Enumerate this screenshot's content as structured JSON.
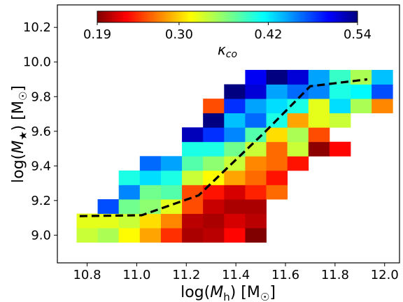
{
  "chart_data": {
    "type": "heatmap",
    "xlabel": "log(M_h) [M_☉]",
    "ylabel": "log(M_★) [M_☉]",
    "xlim": [
      10.68,
      12.06
    ],
    "ylim": [
      8.84,
      10.33
    ],
    "xticks": [
      10.8,
      11.0,
      11.2,
      11.4,
      11.6,
      11.8,
      12.0
    ],
    "xtick_labels": [
      "10.8",
      "11.0",
      "11.2",
      "11.4",
      "11.6",
      "11.8",
      "12.0"
    ],
    "yticks": [
      9.0,
      9.2,
      9.4,
      9.6,
      9.8,
      10.0,
      10.2
    ],
    "ytick_labels": [
      "9.0",
      "9.2",
      "9.4",
      "9.6",
      "9.8",
      "10.0",
      "10.2"
    ],
    "bin_width_x": 0.085,
    "bin_width_y": 0.083,
    "colorbar": {
      "label": "κ_co",
      "colormap": "jet_r",
      "vmin": 0.19,
      "vmax": 0.54,
      "ticks": [
        0.19,
        0.3,
        0.42,
        0.54
      ],
      "tick_labels": [
        "0.19",
        "0.30",
        "0.42",
        "0.54"
      ],
      "orientation": "horizontal",
      "location": "inset-top"
    },
    "cells": [
      {
        "x": 10.8,
        "y": 9.0,
        "v": 0.34
      },
      {
        "x": 10.885,
        "y": 9.0,
        "v": 0.35
      },
      {
        "x": 10.97,
        "y": 9.0,
        "v": 0.32
      },
      {
        "x": 11.055,
        "y": 9.0,
        "v": 0.29
      },
      {
        "x": 11.14,
        "y": 9.0,
        "v": 0.25
      },
      {
        "x": 11.225,
        "y": 9.0,
        "v": 0.205
      },
      {
        "x": 11.31,
        "y": 9.0,
        "v": 0.21
      },
      {
        "x": 11.395,
        "y": 9.0,
        "v": 0.235
      },
      {
        "x": 11.48,
        "y": 9.0,
        "v": 0.19
      },
      {
        "x": 10.8,
        "y": 9.083,
        "v": 0.33
      },
      {
        "x": 10.885,
        "y": 9.083,
        "v": 0.33
      },
      {
        "x": 10.97,
        "y": 9.083,
        "v": 0.34
      },
      {
        "x": 11.055,
        "y": 9.083,
        "v": 0.31
      },
      {
        "x": 11.14,
        "y": 9.083,
        "v": 0.28
      },
      {
        "x": 11.225,
        "y": 9.083,
        "v": 0.21
      },
      {
        "x": 11.31,
        "y": 9.083,
        "v": 0.205
      },
      {
        "x": 11.395,
        "y": 9.083,
        "v": 0.22
      },
      {
        "x": 11.48,
        "y": 9.083,
        "v": 0.21
      },
      {
        "x": 10.885,
        "y": 9.166,
        "v": 0.47
      },
      {
        "x": 10.97,
        "y": 9.166,
        "v": 0.37
      },
      {
        "x": 11.055,
        "y": 9.166,
        "v": 0.36
      },
      {
        "x": 11.14,
        "y": 9.166,
        "v": 0.33
      },
      {
        "x": 11.225,
        "y": 9.166,
        "v": 0.26
      },
      {
        "x": 11.31,
        "y": 9.166,
        "v": 0.215
      },
      {
        "x": 11.395,
        "y": 9.166,
        "v": 0.205
      },
      {
        "x": 11.48,
        "y": 9.166,
        "v": 0.205
      },
      {
        "x": 10.97,
        "y": 9.249,
        "v": 0.45
      },
      {
        "x": 11.055,
        "y": 9.249,
        "v": 0.37
      },
      {
        "x": 11.14,
        "y": 9.249,
        "v": 0.38
      },
      {
        "x": 11.225,
        "y": 9.249,
        "v": 0.26
      },
      {
        "x": 11.31,
        "y": 9.249,
        "v": 0.24
      },
      {
        "x": 11.395,
        "y": 9.249,
        "v": 0.22
      },
      {
        "x": 11.48,
        "y": 9.249,
        "v": 0.245
      },
      {
        "x": 11.565,
        "y": 9.249,
        "v": 0.27
      },
      {
        "x": 10.97,
        "y": 9.332,
        "v": 0.4
      },
      {
        "x": 11.055,
        "y": 9.332,
        "v": 0.42
      },
      {
        "x": 11.14,
        "y": 9.332,
        "v": 0.4
      },
      {
        "x": 11.225,
        "y": 9.332,
        "v": 0.34
      },
      {
        "x": 11.31,
        "y": 9.332,
        "v": 0.32
      },
      {
        "x": 11.395,
        "y": 9.332,
        "v": 0.29
      },
      {
        "x": 11.48,
        "y": 9.332,
        "v": 0.27
      },
      {
        "x": 11.565,
        "y": 9.332,
        "v": 0.24
      },
      {
        "x": 11.055,
        "y": 9.415,
        "v": 0.46
      },
      {
        "x": 11.14,
        "y": 9.415,
        "v": 0.44
      },
      {
        "x": 11.225,
        "y": 9.415,
        "v": 0.38
      },
      {
        "x": 11.31,
        "y": 9.415,
        "v": 0.36
      },
      {
        "x": 11.395,
        "y": 9.415,
        "v": 0.34
      },
      {
        "x": 11.48,
        "y": 9.415,
        "v": 0.28
      },
      {
        "x": 11.565,
        "y": 9.415,
        "v": 0.27
      },
      {
        "x": 11.65,
        "y": 9.415,
        "v": 0.24
      },
      {
        "x": 11.225,
        "y": 9.498,
        "v": 0.4
      },
      {
        "x": 11.31,
        "y": 9.498,
        "v": 0.4
      },
      {
        "x": 11.395,
        "y": 9.498,
        "v": 0.37
      },
      {
        "x": 11.48,
        "y": 9.498,
        "v": 0.34
      },
      {
        "x": 11.565,
        "y": 9.498,
        "v": 0.27
      },
      {
        "x": 11.65,
        "y": 9.498,
        "v": 0.34
      },
      {
        "x": 11.735,
        "y": 9.498,
        "v": 0.195
      },
      {
        "x": 11.82,
        "y": 9.498,
        "v": 0.235
      },
      {
        "x": 11.225,
        "y": 9.581,
        "v": 0.52
      },
      {
        "x": 11.31,
        "y": 9.581,
        "v": 0.48
      },
      {
        "x": 11.395,
        "y": 9.581,
        "v": 0.45
      },
      {
        "x": 11.48,
        "y": 9.581,
        "v": 0.38
      },
      {
        "x": 11.565,
        "y": 9.581,
        "v": 0.31
      },
      {
        "x": 11.65,
        "y": 9.581,
        "v": 0.35
      },
      {
        "x": 11.735,
        "y": 9.581,
        "v": 0.26
      },
      {
        "x": 11.31,
        "y": 9.664,
        "v": 0.54
      },
      {
        "x": 11.395,
        "y": 9.664,
        "v": 0.43
      },
      {
        "x": 11.48,
        "y": 9.664,
        "v": 0.46
      },
      {
        "x": 11.565,
        "y": 9.664,
        "v": 0.4
      },
      {
        "x": 11.65,
        "y": 9.664,
        "v": 0.29
      },
      {
        "x": 11.735,
        "y": 9.664,
        "v": 0.33
      },
      {
        "x": 11.82,
        "y": 9.664,
        "v": 0.34
      },
      {
        "x": 11.31,
        "y": 9.747,
        "v": 0.26
      },
      {
        "x": 11.395,
        "y": 9.747,
        "v": 0.48
      },
      {
        "x": 11.48,
        "y": 9.747,
        "v": 0.44
      },
      {
        "x": 11.565,
        "y": 9.747,
        "v": 0.42
      },
      {
        "x": 11.65,
        "y": 9.747,
        "v": 0.4
      },
      {
        "x": 11.735,
        "y": 9.747,
        "v": 0.33
      },
      {
        "x": 11.82,
        "y": 9.747,
        "v": 0.42
      },
      {
        "x": 11.905,
        "y": 9.747,
        "v": 0.35
      },
      {
        "x": 11.99,
        "y": 9.747,
        "v": 0.28
      },
      {
        "x": 11.395,
        "y": 9.83,
        "v": 0.54
      },
      {
        "x": 11.48,
        "y": 9.83,
        "v": 0.51
      },
      {
        "x": 11.565,
        "y": 9.83,
        "v": 0.44
      },
      {
        "x": 11.65,
        "y": 9.83,
        "v": 0.46
      },
      {
        "x": 11.735,
        "y": 9.83,
        "v": 0.45
      },
      {
        "x": 11.82,
        "y": 9.83,
        "v": 0.4
      },
      {
        "x": 11.905,
        "y": 9.83,
        "v": 0.41
      },
      {
        "x": 11.99,
        "y": 9.83,
        "v": 0.47
      },
      {
        "x": 11.48,
        "y": 9.913,
        "v": 0.5
      },
      {
        "x": 11.565,
        "y": 9.913,
        "v": 0.54
      },
      {
        "x": 11.65,
        "y": 9.913,
        "v": 0.51
      },
      {
        "x": 11.735,
        "y": 9.913,
        "v": 0.44
      },
      {
        "x": 11.82,
        "y": 9.913,
        "v": 0.39
      },
      {
        "x": 11.905,
        "y": 9.913,
        "v": 0.35
      },
      {
        "x": 11.99,
        "y": 9.913,
        "v": 0.43
      }
    ],
    "median_line": {
      "style": "dashed",
      "color": "#000000",
      "x": [
        10.77,
        11.02,
        11.25,
        11.52,
        11.7,
        11.93
      ],
      "y": [
        9.11,
        9.115,
        9.23,
        9.6,
        9.86,
        9.9
      ]
    }
  }
}
